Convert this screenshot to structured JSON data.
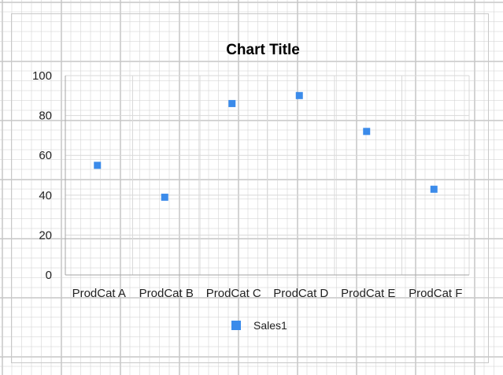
{
  "chart_data": {
    "type": "scatter",
    "title": "Chart Title",
    "categories": [
      "ProdCat A",
      "ProdCat B",
      "ProdCat C",
      "ProdCat D",
      "ProdCat E",
      "ProdCat F"
    ],
    "series": [
      {
        "name": "Sales1",
        "values": [
          55,
          39,
          86,
          90,
          72,
          43
        ],
        "color": "#3b8bea",
        "marker": "square"
      }
    ],
    "xlabel": "",
    "ylabel": "",
    "ylim": [
      0,
      100
    ],
    "yticks": [
      0,
      20,
      40,
      60,
      80,
      100
    ],
    "grid": true,
    "legend_position": "bottom"
  },
  "colors": {
    "grid": "#d9d9d9",
    "axis": "#a6a6a6",
    "marker": "#3b8bea"
  }
}
